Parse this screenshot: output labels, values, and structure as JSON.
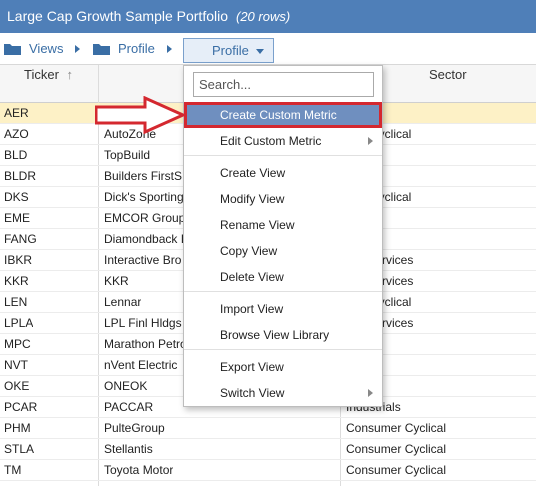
{
  "title": "Large Cap Growth Sample Portfolio",
  "row_count": "(20 rows)",
  "breadcrumbs": [
    "Views",
    "Profile"
  ],
  "view_selector": "Profile",
  "columns": {
    "ticker": "Ticker",
    "sector": "Sector"
  },
  "sort_indicator": "arrow-up-icon",
  "rows": [
    {
      "ticker": "AER",
      "name": "",
      "sector": "ials"
    },
    {
      "ticker": "AZO",
      "name": "AutoZone",
      "sector": "mer Cyclical"
    },
    {
      "ticker": "BLD",
      "name": "TopBuild",
      "sector": "ials"
    },
    {
      "ticker": "BLDR",
      "name": "Builders FirstS",
      "sector": "ials"
    },
    {
      "ticker": "DKS",
      "name": "Dick's Sporting",
      "sector": "mer Cyclical"
    },
    {
      "ticker": "EME",
      "name": "EMCOR Group",
      "sector": "ials"
    },
    {
      "ticker": "FANG",
      "name": "Diamondback I",
      "sector": ""
    },
    {
      "ticker": "IBKR",
      "name": "Interactive Bro",
      "sector": "cial Services"
    },
    {
      "ticker": "KKR",
      "name": "KKR",
      "sector": "cial Services"
    },
    {
      "ticker": "LEN",
      "name": "Lennar",
      "sector": "mer Cyclical"
    },
    {
      "ticker": "LPLA",
      "name": "LPL Finl Hldgs",
      "sector": "cial Services"
    },
    {
      "ticker": "MPC",
      "name": "Marathon Petro",
      "sector": ""
    },
    {
      "ticker": "NVT",
      "name": "nVent Electric",
      "sector": ""
    },
    {
      "ticker": "OKE",
      "name": "ONEOK",
      "sector": ""
    },
    {
      "ticker": "PCAR",
      "name": "PACCAR",
      "sector": "Industrials"
    },
    {
      "ticker": "PHM",
      "name": "PulteGroup",
      "sector": "Consumer Cyclical"
    },
    {
      "ticker": "STLA",
      "name": "Stellantis",
      "sector": "Consumer Cyclical"
    },
    {
      "ticker": "TM",
      "name": "Toyota Motor",
      "sector": "Consumer Cyclical"
    }
  ],
  "menu": {
    "search_placeholder": "Search...",
    "items": [
      {
        "label": "Create Custom Metric",
        "highlighted": true
      },
      {
        "label": "Edit Custom Metric",
        "submenu": true
      },
      {
        "label": "Create View"
      },
      {
        "label": "Modify View"
      },
      {
        "label": "Rename View"
      },
      {
        "label": "Copy View"
      },
      {
        "label": "Delete View"
      },
      {
        "label": "Import View"
      },
      {
        "label": "Browse View Library"
      },
      {
        "label": "Export View"
      },
      {
        "label": "Switch View",
        "submenu": true
      }
    ]
  },
  "colors": {
    "titlebar": "#4f7fb8",
    "selected_row": "#fdf1c6",
    "menu_highlight": "#6f8fbf",
    "callout": "#d4282f"
  }
}
